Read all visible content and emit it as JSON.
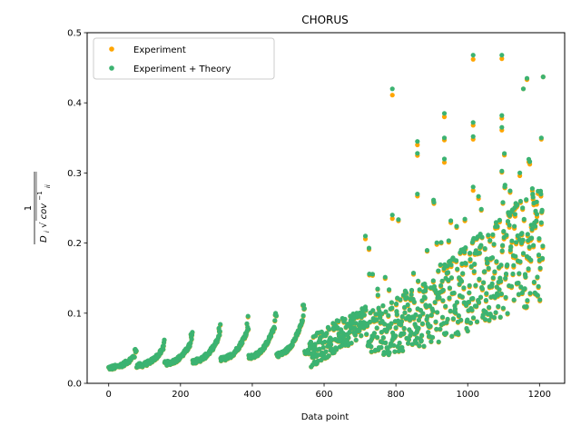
{
  "chart_data": {
    "type": "scatter",
    "title": "CHORUS",
    "xlabel": "Data point",
    "ylabel_parts": {
      "numerator": "1",
      "den_D": "D",
      "den_D_sub": "i",
      "den_cov": "cov",
      "den_cov_sup": "−1",
      "den_cov_sub": "ii"
    },
    "xlim": [
      -60,
      1270
    ],
    "ylim": [
      0,
      0.5
    ],
    "xticks": [
      0,
      200,
      400,
      600,
      800,
      1000,
      1200
    ],
    "yticks": [
      0.0,
      0.1,
      0.2,
      0.3,
      0.4,
      0.5
    ],
    "xtick_labels": [
      "0",
      "200",
      "400",
      "600",
      "800",
      "1000",
      "1200"
    ],
    "ytick_labels": [
      "0.0",
      "0.1",
      "0.2",
      "0.3",
      "0.4",
      "0.5"
    ],
    "legend_position": "top-left",
    "series": [
      {
        "name": "Experiment",
        "color": "#ffa500"
      },
      {
        "name": "Experiment + Theory",
        "color": "#3cb371"
      }
    ],
    "generation": {
      "note": "points are sampled along the visible trend",
      "n_points": 1210
    },
    "highlights": [
      [
        790,
        0.42,
        0.411
      ],
      [
        860,
        0.345,
        0.34
      ],
      [
        860,
        0.328,
        0.325
      ],
      [
        935,
        0.385,
        0.38
      ],
      [
        935,
        0.35,
        0.347
      ],
      [
        1015,
        0.468,
        0.462
      ],
      [
        1015,
        0.372,
        0.368
      ],
      [
        1015,
        0.352,
        0.348
      ],
      [
        1095,
        0.468,
        0.463
      ],
      [
        1095,
        0.382,
        0.378
      ],
      [
        1095,
        0.365,
        0.361
      ],
      [
        1210,
        0.437,
        0.437
      ],
      [
        1165,
        0.435,
        0.433
      ],
      [
        1155,
        0.42,
        0.42
      ],
      [
        1205,
        0.35,
        0.348
      ],
      [
        715,
        0.21,
        0.206
      ],
      [
        790,
        0.24,
        0.235
      ],
      [
        860,
        0.27,
        0.267
      ],
      [
        935,
        0.32,
        0.315
      ],
      [
        1015,
        0.28,
        0.275
      ]
    ]
  }
}
